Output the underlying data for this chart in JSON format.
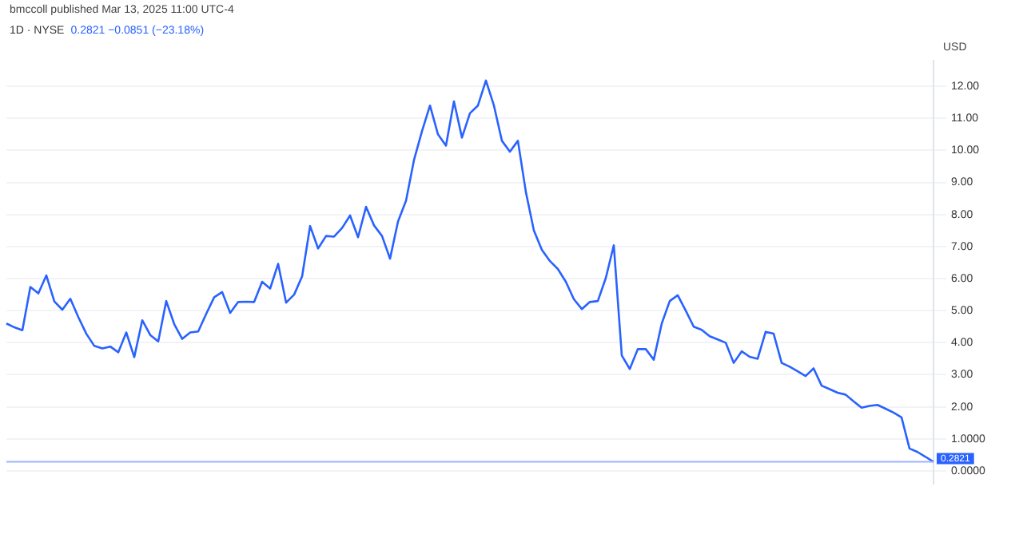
{
  "chart_data": {
    "type": "line",
    "title": "1D · NYSE",
    "subtitle": "0.2821 −0.0851 (−23.18%)",
    "ylabel": "USD",
    "annotations": [
      "bmccoll published Mar 13, 2025 11:00 UTC-4"
    ],
    "categories": [
      null,
      null,
      null,
      null,
      null,
      null,
      null,
      null,
      null,
      null,
      null,
      null,
      null,
      null,
      null,
      null,
      null,
      null,
      null,
      null,
      null,
      null,
      null,
      null,
      null,
      null,
      null,
      null,
      null,
      null,
      null,
      null,
      null,
      null,
      null,
      null,
      null,
      null,
      null,
      null,
      null,
      null,
      null,
      null,
      null,
      null,
      null,
      null,
      null,
      null,
      null,
      null,
      null,
      null,
      null,
      null,
      null,
      null,
      null,
      null,
      null,
      null,
      null,
      null,
      null,
      null,
      null,
      null,
      null,
      null,
      null,
      null,
      null,
      null,
      null,
      null,
      null,
      null,
      null,
      null,
      null,
      null,
      null,
      null,
      null,
      null,
      null,
      null,
      null,
      null,
      null,
      null,
      null,
      null,
      null,
      null,
      null,
      null,
      null,
      null,
      null,
      null,
      null,
      null,
      null,
      null,
      null,
      null,
      null,
      null,
      null,
      null,
      null,
      null,
      null,
      null,
      null
    ],
    "series": [
      {
        "color": "#2962ff",
        "values": [
          4.6,
          4.48,
          4.39,
          5.74,
          5.54,
          6.1,
          5.29,
          5.03,
          5.37,
          4.8,
          4.28,
          3.9,
          3.82,
          3.88,
          3.7,
          4.32,
          3.55,
          4.7,
          4.24,
          4.04,
          5.3,
          4.58,
          4.12,
          4.32,
          4.35,
          4.9,
          5.42,
          5.58,
          4.93,
          5.27,
          5.28,
          5.27,
          5.9,
          5.69,
          6.46,
          5.25,
          5.5,
          6.07,
          7.64,
          6.94,
          7.33,
          7.31,
          7.58,
          7.97,
          7.29,
          8.24,
          7.66,
          7.33,
          6.62,
          7.78,
          8.43,
          9.7,
          10.6,
          11.4,
          10.5,
          10.15,
          11.53,
          10.4,
          11.16,
          11.4,
          12.18,
          11.4,
          10.3,
          9.96,
          10.3,
          8.7,
          7.5,
          6.9,
          6.55,
          6.3,
          5.9,
          5.36,
          5.05,
          5.27,
          5.3,
          6.02,
          7.04,
          3.6,
          3.18,
          3.8,
          3.8,
          3.47,
          4.6,
          5.3,
          5.48,
          5.0,
          4.5,
          4.4,
          4.2,
          4.1,
          4.0,
          3.37,
          3.73,
          3.56,
          3.5,
          4.34,
          4.28,
          3.37,
          3.25,
          3.11,
          2.96,
          3.2,
          2.66,
          2.55,
          2.44,
          2.38,
          2.17,
          1.97,
          2.03,
          2.06,
          1.94,
          1.82,
          1.67,
          0.7,
          0.59,
          0.44,
          0.28
        ]
      }
    ],
    "tick_labels": "y",
    "ylim": [
      -0.4,
      12.8
    ],
    "yticks": [
      {
        "value": 0,
        "label": "0.0000"
      },
      {
        "value": 1,
        "label": "1.0000"
      },
      {
        "value": 2,
        "label": "2.00"
      },
      {
        "value": 3,
        "label": "3.00"
      },
      {
        "value": 4,
        "label": "4.00"
      },
      {
        "value": 5,
        "label": "5.00"
      },
      {
        "value": 6,
        "label": "6.00"
      },
      {
        "value": 7,
        "label": "7.00"
      },
      {
        "value": 8,
        "label": "8.00"
      },
      {
        "value": 9,
        "label": "9.00"
      },
      {
        "value": 10,
        "label": "10.00"
      },
      {
        "value": 11,
        "label": "11.00"
      },
      {
        "value": 12,
        "label": "12.00"
      }
    ],
    "ref_lines": [
      {
        "axis": "y",
        "value": 0.2821,
        "label": "0.2821",
        "color": "#9fb4ff"
      }
    ],
    "grid": true,
    "marker": "none",
    "line_style": "solid"
  }
}
